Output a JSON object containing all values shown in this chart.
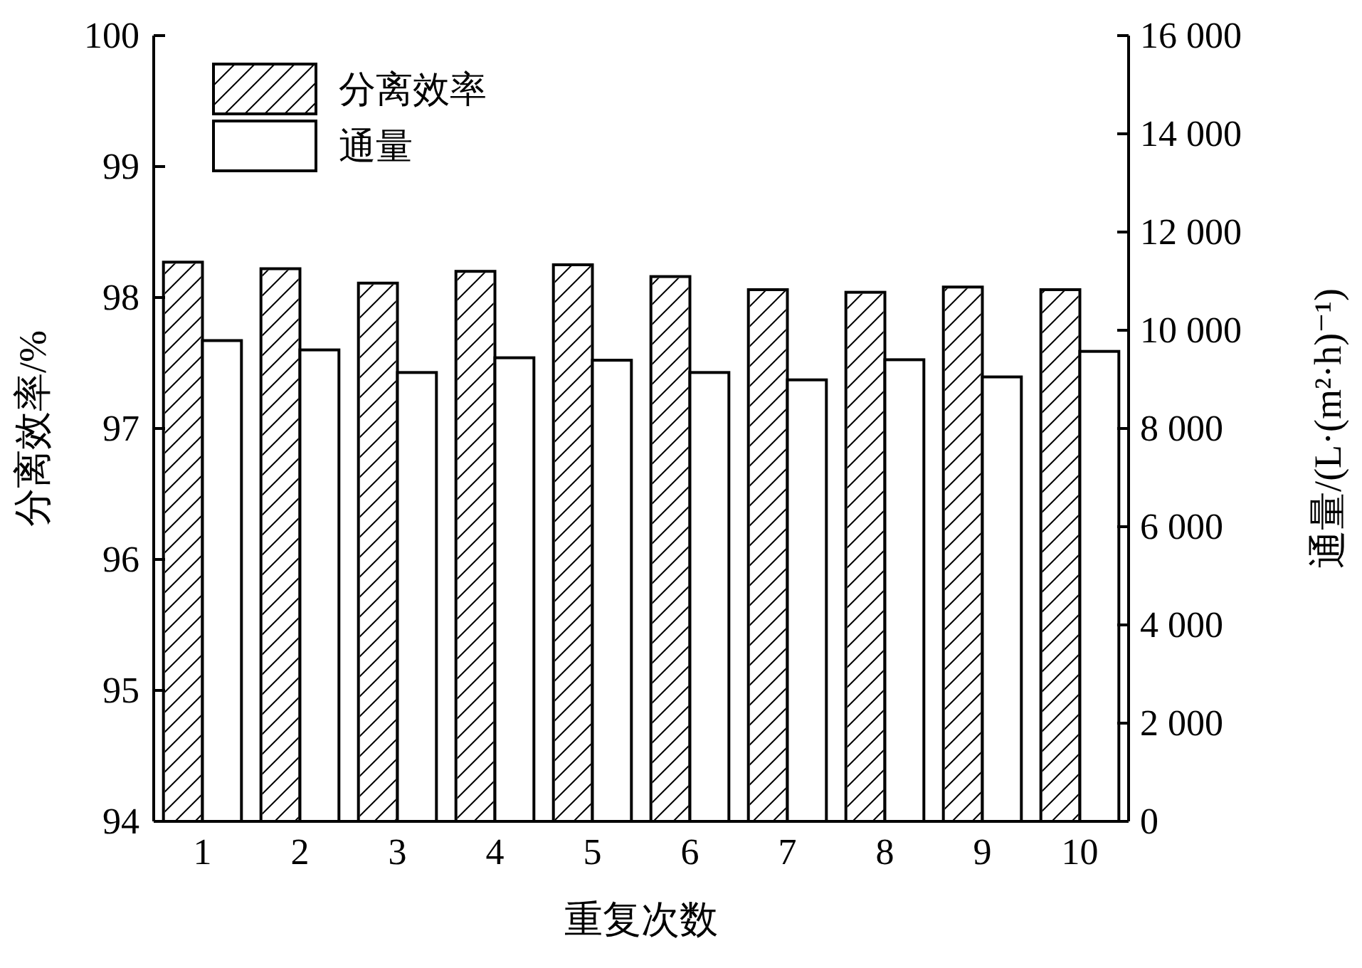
{
  "chart_data": {
    "type": "bar",
    "xlabel": "重复次数",
    "ylabel": "分离效率/%",
    "y2label": "通量/(L·(m²·h)⁻¹)",
    "categories": [
      "1",
      "2",
      "3",
      "4",
      "5",
      "6",
      "7",
      "8",
      "9",
      "10"
    ],
    "series": [
      {
        "name": "分离效率",
        "color": "#ffffff",
        "values": [
          98.27,
          98.22,
          98.11,
          98.2,
          98.25,
          98.16,
          98.06,
          98.04,
          98.08,
          98.06
        ]
      },
      {
        "name": "通量",
        "color": "#ffffff",
        "axis": "y2",
        "values": [
          9790,
          9600,
          9140,
          9440,
          9390,
          9140,
          8990,
          9400,
          9050,
          9570
        ]
      }
    ],
    "ylim": [
      94,
      100
    ],
    "yticks": [
      94,
      95,
      96,
      97,
      98,
      99,
      100
    ],
    "y2lim": [
      0,
      16000
    ],
    "y2ticks": [
      0,
      {
        "value": 2000,
        "label": "2 000"
      },
      {
        "value": 4000,
        "label": "4 000"
      },
      {
        "value": 6000,
        "label": "6 000"
      },
      {
        "value": 8000,
        "label": "8 000"
      },
      {
        "value": 10000,
        "label": "10 000"
      },
      {
        "value": 12000,
        "label": "12 000"
      },
      {
        "value": 14000,
        "label": "14 000"
      },
      {
        "value": 16000,
        "label": "16 000"
      }
    ],
    "legend": "top left",
    "grid": false
  }
}
